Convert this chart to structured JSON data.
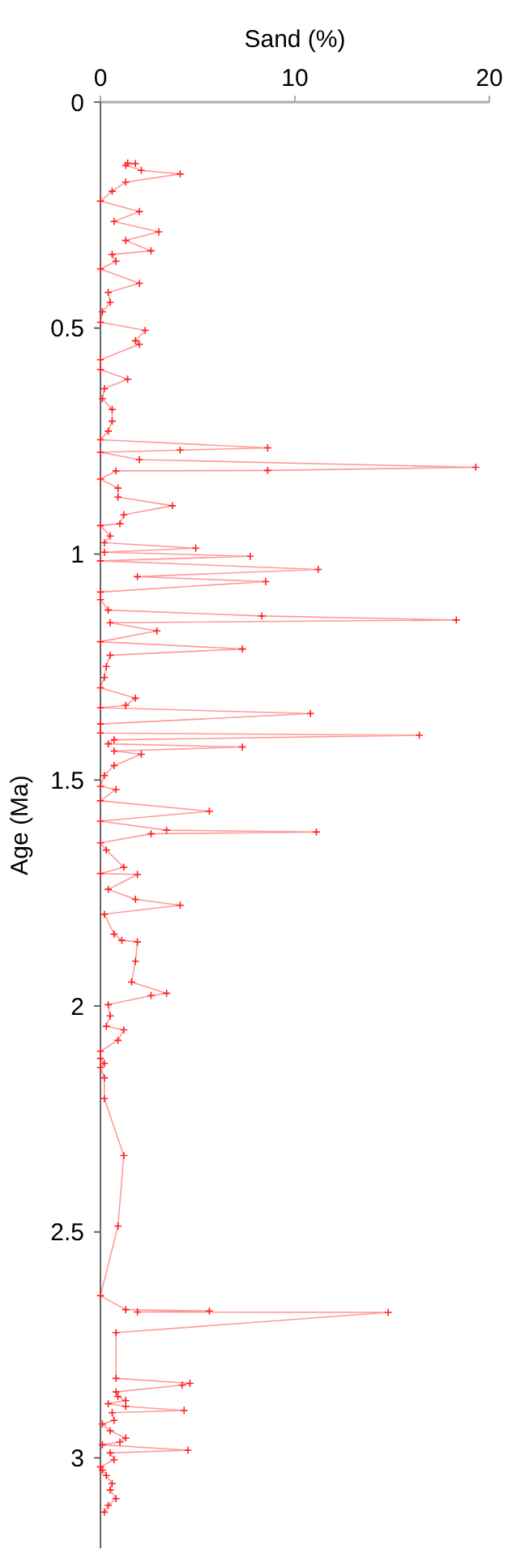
{
  "chart_data": {
    "type": "line",
    "xlabel": "Sand (%)",
    "ylabel": "Age (Ma)",
    "xlim": [
      0,
      20
    ],
    "xticks": [
      0,
      10,
      20
    ],
    "ylim": [
      3.2,
      0
    ],
    "yticks": [
      0,
      0.5,
      1,
      1.5,
      2,
      2.5,
      3
    ],
    "marker": "cross",
    "line_style": "solid",
    "grid": false,
    "series": [
      {
        "color": "#ff2020",
        "x": [
          1.4,
          1.8,
          1.3,
          2.1,
          4.1,
          1.3,
          0.6,
          0,
          2.0,
          0.7,
          3.0,
          1.3,
          2.6,
          0.6,
          0.8,
          0,
          2.0,
          0.4,
          0.5,
          0.1,
          0,
          2.3,
          1.8,
          2.0,
          0,
          0,
          1.4,
          0.2,
          0.1,
          0.6,
          0.6,
          0.4,
          0,
          8.6,
          4.1,
          0,
          2.0,
          19.3,
          8.6,
          0.8,
          0,
          0.9,
          0.9,
          3.7,
          1.2,
          1.0,
          0,
          0.5,
          0.2,
          4.9,
          0.2,
          7.7,
          0,
          11.2,
          1.9,
          8.5,
          0,
          0,
          0.4,
          8.3,
          18.3,
          0.5,
          2.9,
          0,
          7.3,
          0.5,
          0.3,
          0.2,
          0,
          1.8,
          1.3,
          0,
          10.8,
          0,
          0,
          16.4,
          0.7,
          0.4,
          7.3,
          0.7,
          2.1,
          0.7,
          0.2,
          0,
          0.8,
          0,
          5.6,
          0,
          3.4,
          11.1,
          2.6,
          0,
          0.3,
          1.2,
          0,
          1.9,
          0.4,
          1.8,
          4.1,
          0.2,
          0.7,
          1.1,
          1.9,
          1.8,
          1.6,
          3.4,
          2.6,
          0.4,
          0.5,
          0.3,
          1.2,
          0.9,
          0,
          0,
          0.2,
          0,
          0.2,
          0.2,
          1.2,
          0.9,
          0,
          1.3,
          5.6,
          1.9,
          14.8,
          0.8,
          0.8,
          4.6,
          4.2,
          0.8,
          0.9,
          1.3,
          0.4,
          1.3,
          4.3,
          0.6,
          0.7,
          0.1,
          0.5,
          1.3,
          1.0,
          0.1,
          4.5,
          0.5,
          0.7,
          0,
          0.1,
          0.3,
          0.6,
          0.5,
          0.8,
          0.4,
          0.2
        ],
        "values": [
          0.135,
          0.136,
          0.14,
          0.151,
          0.159,
          0.177,
          0.197,
          0.219,
          0.242,
          0.264,
          0.287,
          0.306,
          0.329,
          0.337,
          0.352,
          0.369,
          0.401,
          0.421,
          0.443,
          0.464,
          0.487,
          0.505,
          0.528,
          0.536,
          0.57,
          0.592,
          0.613,
          0.634,
          0.656,
          0.68,
          0.706,
          0.728,
          0.747,
          0.765,
          0.77,
          0.775,
          0.791,
          0.808,
          0.815,
          0.816,
          0.834,
          0.854,
          0.874,
          0.893,
          0.913,
          0.933,
          0.937,
          0.96,
          0.975,
          0.987,
          0.996,
          1.005,
          1.015,
          1.034,
          1.05,
          1.061,
          1.084,
          1.101,
          1.124,
          1.137,
          1.146,
          1.152,
          1.17,
          1.194,
          1.21,
          1.224,
          1.249,
          1.273,
          1.296,
          1.319,
          1.335,
          1.34,
          1.353,
          1.376,
          1.396,
          1.401,
          1.411,
          1.42,
          1.427,
          1.436,
          1.443,
          1.468,
          1.49,
          1.514,
          1.521,
          1.546,
          1.569,
          1.591,
          1.611,
          1.615,
          1.619,
          1.639,
          1.655,
          1.693,
          1.707,
          1.709,
          1.742,
          1.764,
          1.777,
          1.797,
          1.841,
          1.855,
          1.858,
          1.901,
          1.947,
          1.972,
          1.977,
          1.997,
          2.022,
          2.045,
          2.053,
          2.076,
          2.1,
          2.116,
          2.127,
          2.136,
          2.159,
          2.205,
          2.331,
          2.487,
          2.641,
          2.672,
          2.675,
          2.677,
          2.678,
          2.723,
          2.824,
          2.835,
          2.839,
          2.854,
          2.864,
          2.873,
          2.88,
          2.886,
          2.895,
          2.9,
          2.917,
          2.925,
          2.94,
          2.956,
          2.965,
          2.971,
          2.983,
          2.989,
          3.004,
          3.02,
          3.027,
          3.039,
          3.057,
          3.071,
          3.09,
          3.105,
          3.12
        ]
      }
    ]
  }
}
